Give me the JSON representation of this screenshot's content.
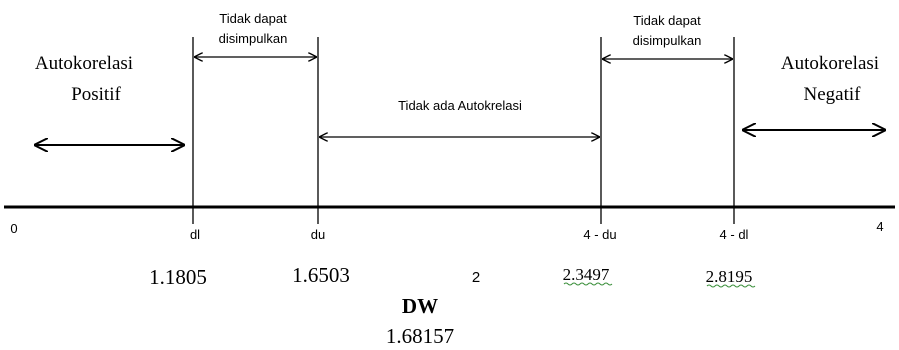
{
  "regions": {
    "positive": [
      "Autokorelasi",
      "Positif"
    ],
    "negative": [
      "Autokorelasi",
      "Negatif"
    ],
    "inconclusive_left": [
      "Tidak dapat",
      "disimpulkan"
    ],
    "inconclusive_right": [
      "Tidak dapat",
      "disimpulkan"
    ],
    "no_autocorrelation": "Tidak ada Autokrelasi"
  },
  "axis": {
    "zero": "0",
    "dl": "dl",
    "du": "du",
    "four_minus_du": "4 - du",
    "four_minus_dl": "4 - dl",
    "four": "4"
  },
  "values": {
    "dl": "1.1805",
    "du": "1.6503",
    "two": "2",
    "four_minus_du": "2.3497",
    "four_minus_dl": "2.8195"
  },
  "dw": {
    "label": "DW",
    "value": "1.68157"
  }
}
